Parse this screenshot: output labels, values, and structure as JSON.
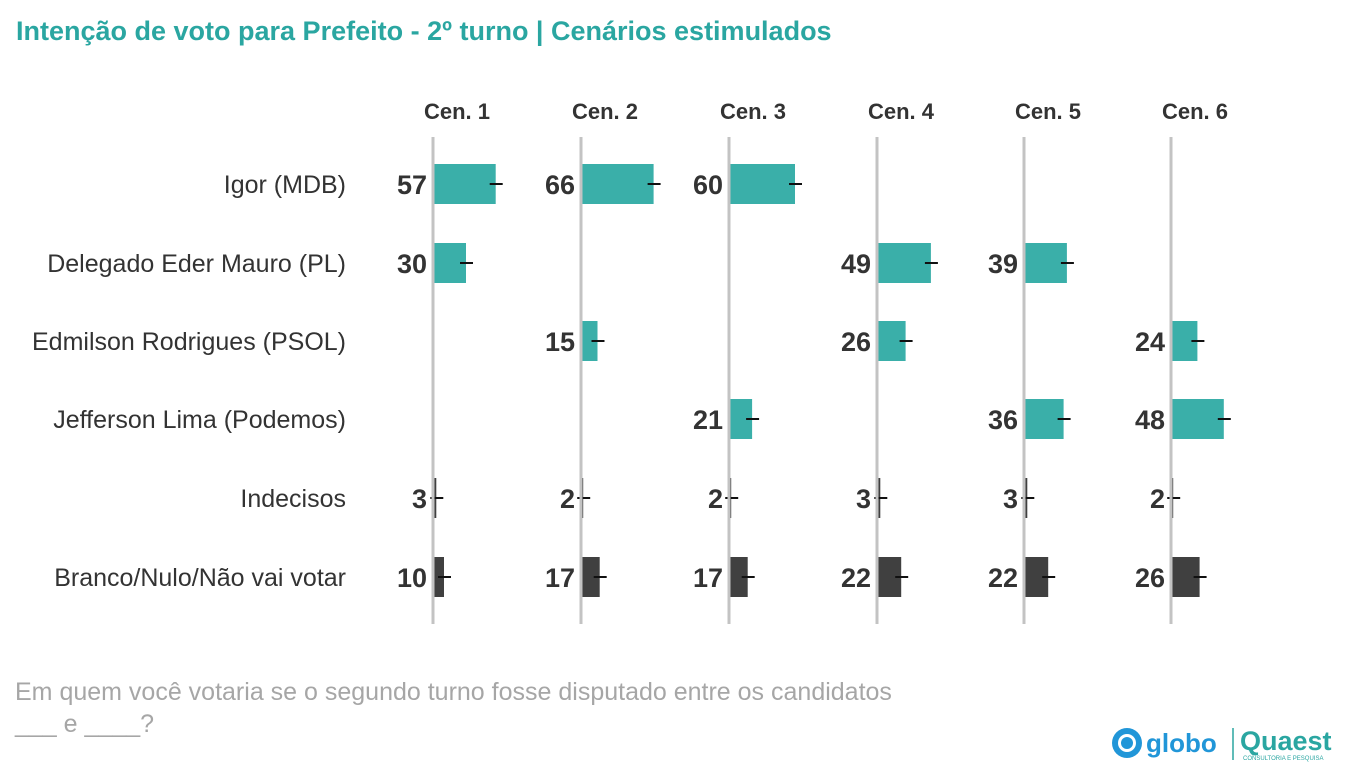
{
  "title": "Intenção de voto para Prefeito - 2º turno | Cenários estimulados",
  "question": "Em quem você votaria se o segundo turno fosse disputado entre os candidatos ___ e ____?",
  "logos": {
    "globo": "globo",
    "quaest": "Quaest",
    "quaest_tagline": "CONSULTORIA E PESQUISA"
  },
  "colors": {
    "teal": "#3aafa9",
    "dark": "#404040",
    "axis": "#c3c3c3",
    "title": "#2aa6a1",
    "label": "#333333",
    "globo": "#2196d8"
  },
  "chart_data": {
    "type": "bar",
    "orientation": "horizontal",
    "title": "Intenção de voto para Prefeito - 2º turno | Cenários estimulados",
    "categories": [
      "Igor (MDB)",
      "Delegado Eder Mauro (PL)",
      "Edmilson Rodrigues (PSOL)",
      "Jefferson Lima (Podemos)",
      "Indecisos",
      "Branco/Nulo/Não vai votar"
    ],
    "series": [
      {
        "name": "Cen. 1",
        "values": [
          57,
          30,
          null,
          null,
          3,
          10
        ]
      },
      {
        "name": "Cen. 2",
        "values": [
          66,
          null,
          15,
          null,
          2,
          17
        ]
      },
      {
        "name": "Cen. 3",
        "values": [
          60,
          null,
          null,
          21,
          2,
          17
        ]
      },
      {
        "name": "Cen. 4",
        "values": [
          null,
          49,
          26,
          null,
          3,
          22
        ]
      },
      {
        "name": "Cen. 5",
        "values": [
          null,
          39,
          null,
          36,
          3,
          22
        ]
      },
      {
        "name": "Cen. 6",
        "values": [
          null,
          null,
          24,
          48,
          2,
          26
        ]
      }
    ],
    "dark_categories": [
      "Indecisos",
      "Branco/Nulo/Não vai votar"
    ],
    "error_bars": true,
    "unit": "%"
  }
}
